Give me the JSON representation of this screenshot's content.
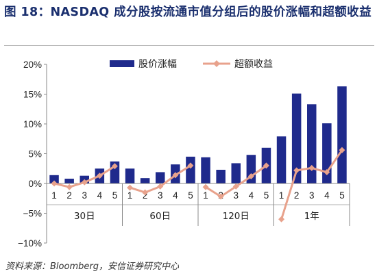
{
  "figure": {
    "title": "图 18：NASDAQ 成分股按流通市值分组后的股价涨幅和超额收益",
    "source": "资料来源：Bloomberg，安信证券研究中心"
  },
  "colors": {
    "title": "#1a2f6e",
    "bar": "#1f2a8c",
    "line": "#e8a28c",
    "marker": "#e8a28c",
    "axis": "#888888"
  },
  "chart_data": {
    "type": "bar",
    "y_unit": "%",
    "ylim": [
      -10,
      20
    ],
    "yticks": [
      "20%",
      "15%",
      "10%",
      "5%",
      "0%",
      "-5%",
      "-10%"
    ],
    "grid": false,
    "legend_position": "top-center",
    "categories": [
      "1",
      "2",
      "3",
      "4",
      "5",
      "1",
      "2",
      "3",
      "4",
      "5",
      "1",
      "2",
      "3",
      "4",
      "5",
      "1",
      "2",
      "3",
      "4",
      "5"
    ],
    "groups": [
      {
        "label": "30日",
        "size": 5
      },
      {
        "label": "60日",
        "size": 5
      },
      {
        "label": "120日",
        "size": 5
      },
      {
        "label": "1年",
        "size": 5
      }
    ],
    "series": [
      {
        "name": "股价涨幅",
        "type": "bar",
        "values": [
          1.4,
          0.8,
          1.3,
          2.5,
          3.7,
          2.5,
          0.9,
          1.9,
          3.2,
          4.5,
          4.4,
          2.3,
          3.4,
          4.8,
          6.0,
          7.9,
          15.1,
          13.3,
          10.1,
          16.3
        ]
      },
      {
        "name": "超额收益",
        "type": "line",
        "values": [
          0.0,
          -0.6,
          0.2,
          1.3,
          2.9,
          -0.7,
          -1.5,
          -0.5,
          1.4,
          3.0,
          -0.6,
          -2.2,
          -0.5,
          1.2,
          3.0,
          -6.0,
          2.2,
          2.6,
          1.9,
          5.6
        ]
      }
    ]
  }
}
